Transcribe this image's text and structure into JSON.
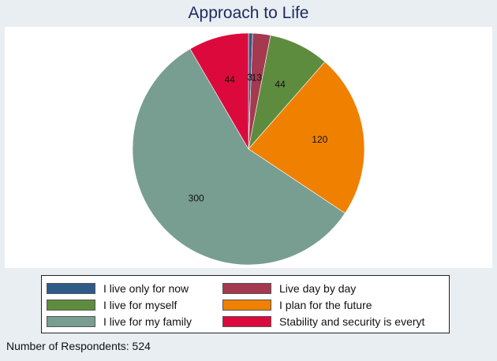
{
  "chart_data": {
    "type": "pie",
    "title": "Approach to Life",
    "start_angle_deg": 0,
    "direction": "clockwise",
    "slices": [
      {
        "label": "I live only for now",
        "value": 3,
        "color": "#2e5a87"
      },
      {
        "label": "Live day by day",
        "value": 13,
        "color": "#a4394f"
      },
      {
        "label": "I live for myself",
        "value": 44,
        "color": "#5e8c3f"
      },
      {
        "label": "I plan for the future",
        "value": 120,
        "color": "#f08000"
      },
      {
        "label": "I live for my family",
        "value": 300,
        "color": "#779e91"
      },
      {
        "label": "Stability and security is everyt",
        "value": 44,
        "color": "#dc0a3c"
      }
    ],
    "legend_position": "bottom",
    "note": "Number of Respondents: 524"
  }
}
